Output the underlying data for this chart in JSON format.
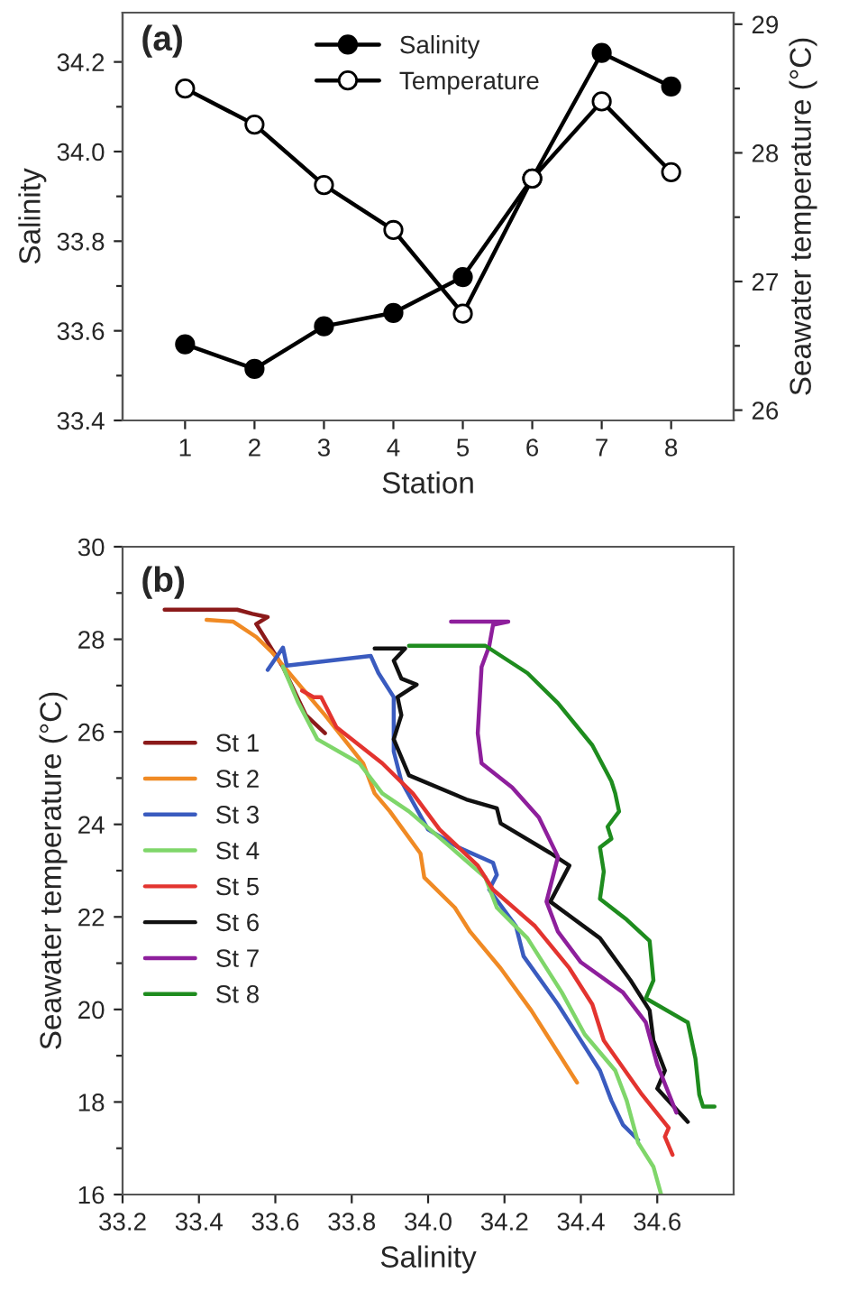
{
  "chart_data": [
    {
      "type": "line",
      "xlabel": "Station",
      "ylabel": "Salinity",
      "y2label": "Seawater temperature (°C)",
      "annotations": [
        "(a)"
      ],
      "marker": "circle",
      "legend": "top",
      "grid": false,
      "xlim": [
        0.1,
        8.9
      ],
      "xticks": [
        1,
        2,
        3,
        4,
        5,
        6,
        7,
        8
      ],
      "ylim": [
        33.4,
        34.31
      ],
      "yticks": [
        33.4,
        {
          "value": 33.5,
          "label": null
        },
        33.6,
        {
          "value": 33.7,
          "label": null
        },
        33.8,
        {
          "value": 33.9,
          "label": null
        },
        {
          "value": 34.0,
          "label": "34.0"
        },
        {
          "value": 34.1,
          "label": null
        },
        34.2
      ],
      "y2lim": [
        25.92,
        29.09
      ],
      "y2ticks": [
        26,
        {
          "value": 26.5,
          "label": null
        },
        27,
        {
          "value": 27.5,
          "label": null
        },
        28,
        {
          "value": 28.5,
          "label": null
        },
        29
      ],
      "x": [
        1,
        2,
        3,
        4,
        5,
        6,
        7,
        8
      ],
      "series": [
        {
          "name": "Salinity",
          "color": "#000000",
          "values": [
            33.57,
            33.515,
            33.61,
            33.64,
            33.72,
            33.94,
            34.22,
            34.145
          ]
        },
        {
          "name": "Temperature",
          "color": "#000000",
          "axis": "y2",
          "values": [
            28.5,
            28.22,
            27.75,
            27.4,
            26.75,
            27.8,
            28.4,
            27.85
          ]
        }
      ]
    },
    {
      "type": "line",
      "xlabel": "Salinity",
      "ylabel": "Seawater temperature (°C)",
      "annotations": [
        "(b)"
      ],
      "marker": "none",
      "legend": "left",
      "grid": false,
      "xlim": [
        33.2,
        34.8
      ],
      "xticks": [
        33.2,
        33.4,
        33.6,
        33.8,
        {
          "value": 34.0,
          "label": "34.0"
        },
        34.2,
        34.4,
        34.6
      ],
      "ylim": [
        16,
        30
      ],
      "yticks": [
        16,
        {
          "value": 17,
          "label": null
        },
        18,
        {
          "value": 19,
          "label": null
        },
        20,
        {
          "value": 21,
          "label": null
        },
        22,
        {
          "value": 23,
          "label": null
        },
        24,
        {
          "value": 25,
          "label": null
        },
        26,
        {
          "value": 27,
          "label": null
        },
        28,
        {
          "value": 29,
          "label": null
        },
        30
      ],
      "series": [
        {
          "name": "St 1",
          "color": "#8b1a1a",
          "x": [
            33.31,
            33.5,
            33.54,
            33.58,
            33.55,
            33.62,
            33.68,
            33.73
          ],
          "values": [
            28.64,
            28.64,
            28.55,
            28.48,
            28.33,
            27.4,
            26.36,
            25.97
          ]
        },
        {
          "name": "St 2",
          "color": "#f08a24",
          "x": [
            33.42,
            33.49,
            33.55,
            33.59,
            33.65,
            33.73,
            33.83,
            33.86,
            33.9,
            33.98,
            33.99,
            34.07,
            34.11,
            34.19,
            34.27,
            34.31,
            34.39
          ],
          "values": [
            28.42,
            28.38,
            28.05,
            27.73,
            27.14,
            26.36,
            25.32,
            24.67,
            24.28,
            23.37,
            22.85,
            22.2,
            21.68,
            20.89,
            19.98,
            19.46,
            18.42
          ]
        },
        {
          "name": "St 3",
          "color": "#3a5bbf",
          "x": [
            33.58,
            33.62,
            33.63,
            33.85,
            33.87,
            33.91,
            33.91,
            33.93,
            34.0,
            34.08,
            34.17,
            34.18,
            34.16,
            34.23,
            34.25,
            34.34,
            34.41,
            34.45,
            34.48,
            34.51,
            34.55
          ],
          "values": [
            27.34,
            27.82,
            27.43,
            27.64,
            27.27,
            26.75,
            25.58,
            24.93,
            23.89,
            23.5,
            23.17,
            22.91,
            22.59,
            21.8,
            21.15,
            20.11,
            19.2,
            18.68,
            18.03,
            17.51,
            17.18
          ]
        },
        {
          "name": "St 4",
          "color": "#7fd66a",
          "x": [
            33.62,
            33.66,
            33.71,
            33.82,
            33.88,
            33.95,
            34.06,
            34.15,
            34.18,
            34.26,
            34.35,
            34.41,
            34.49,
            34.52,
            34.55,
            34.59,
            34.61
          ],
          "values": [
            27.41,
            26.63,
            25.84,
            25.32,
            24.67,
            24.28,
            23.5,
            22.85,
            22.2,
            21.54,
            20.37,
            19.46,
            18.68,
            18.03,
            17.12,
            16.6,
            16.01
          ]
        },
        {
          "name": "St 5",
          "color": "#e3342f",
          "x": [
            33.67,
            33.7,
            33.72,
            33.76,
            33.88,
            33.96,
            34.03,
            34.13,
            34.17,
            34.28,
            34.37,
            34.43,
            34.46,
            34.56,
            34.63,
            34.62,
            34.64
          ],
          "values": [
            26.89,
            26.75,
            26.75,
            26.1,
            25.32,
            24.67,
            23.89,
            23.11,
            22.59,
            21.8,
            20.89,
            20.11,
            19.33,
            18.16,
            17.44,
            17.25,
            16.86
          ]
        },
        {
          "name": "St 6",
          "color": "#111111",
          "x": [
            33.86,
            33.94,
            33.91,
            33.93,
            33.97,
            33.92,
            33.93,
            33.91,
            33.95,
            34.1,
            34.18,
            34.19,
            34.32,
            34.37,
            34.32,
            34.45,
            34.53,
            34.58,
            34.59,
            34.62,
            34.6,
            34.68
          ],
          "values": [
            27.8,
            27.8,
            27.54,
            27.15,
            27.02,
            26.75,
            26.36,
            25.84,
            25.06,
            24.54,
            24.35,
            24.02,
            23.38,
            23.11,
            22.33,
            21.54,
            20.63,
            19.98,
            19.33,
            18.68,
            18.29,
            17.57
          ]
        },
        {
          "name": "St 7",
          "color": "#8e1f9c",
          "x": [
            34.06,
            34.21,
            34.17,
            34.16,
            34.14,
            34.13,
            34.14,
            34.22,
            34.29,
            34.34,
            34.31,
            34.34,
            34.4,
            34.51,
            34.57,
            34.6,
            34.65
          ],
          "values": [
            28.38,
            28.38,
            28.31,
            27.85,
            27.4,
            25.97,
            25.32,
            24.8,
            24.15,
            23.3,
            22.33,
            21.68,
            21.02,
            20.37,
            19.72,
            18.81,
            17.77
          ]
        },
        {
          "name": "St 8",
          "color": "#1e8c1e",
          "x": [
            33.95,
            34.15,
            34.26,
            34.34,
            34.43,
            34.48,
            34.49,
            34.5,
            34.47,
            34.48,
            34.45,
            34.46,
            34.45,
            34.52,
            34.58,
            34.59,
            34.57,
            34.68,
            34.7,
            34.71,
            34.72,
            34.75
          ],
          "values": [
            27.86,
            27.86,
            27.27,
            26.62,
            25.71,
            24.93,
            24.67,
            24.28,
            23.95,
            23.69,
            23.5,
            22.98,
            22.39,
            21.94,
            21.48,
            20.63,
            20.24,
            19.72,
            18.94,
            18.16,
            17.9,
            17.9
          ]
        }
      ]
    }
  ]
}
